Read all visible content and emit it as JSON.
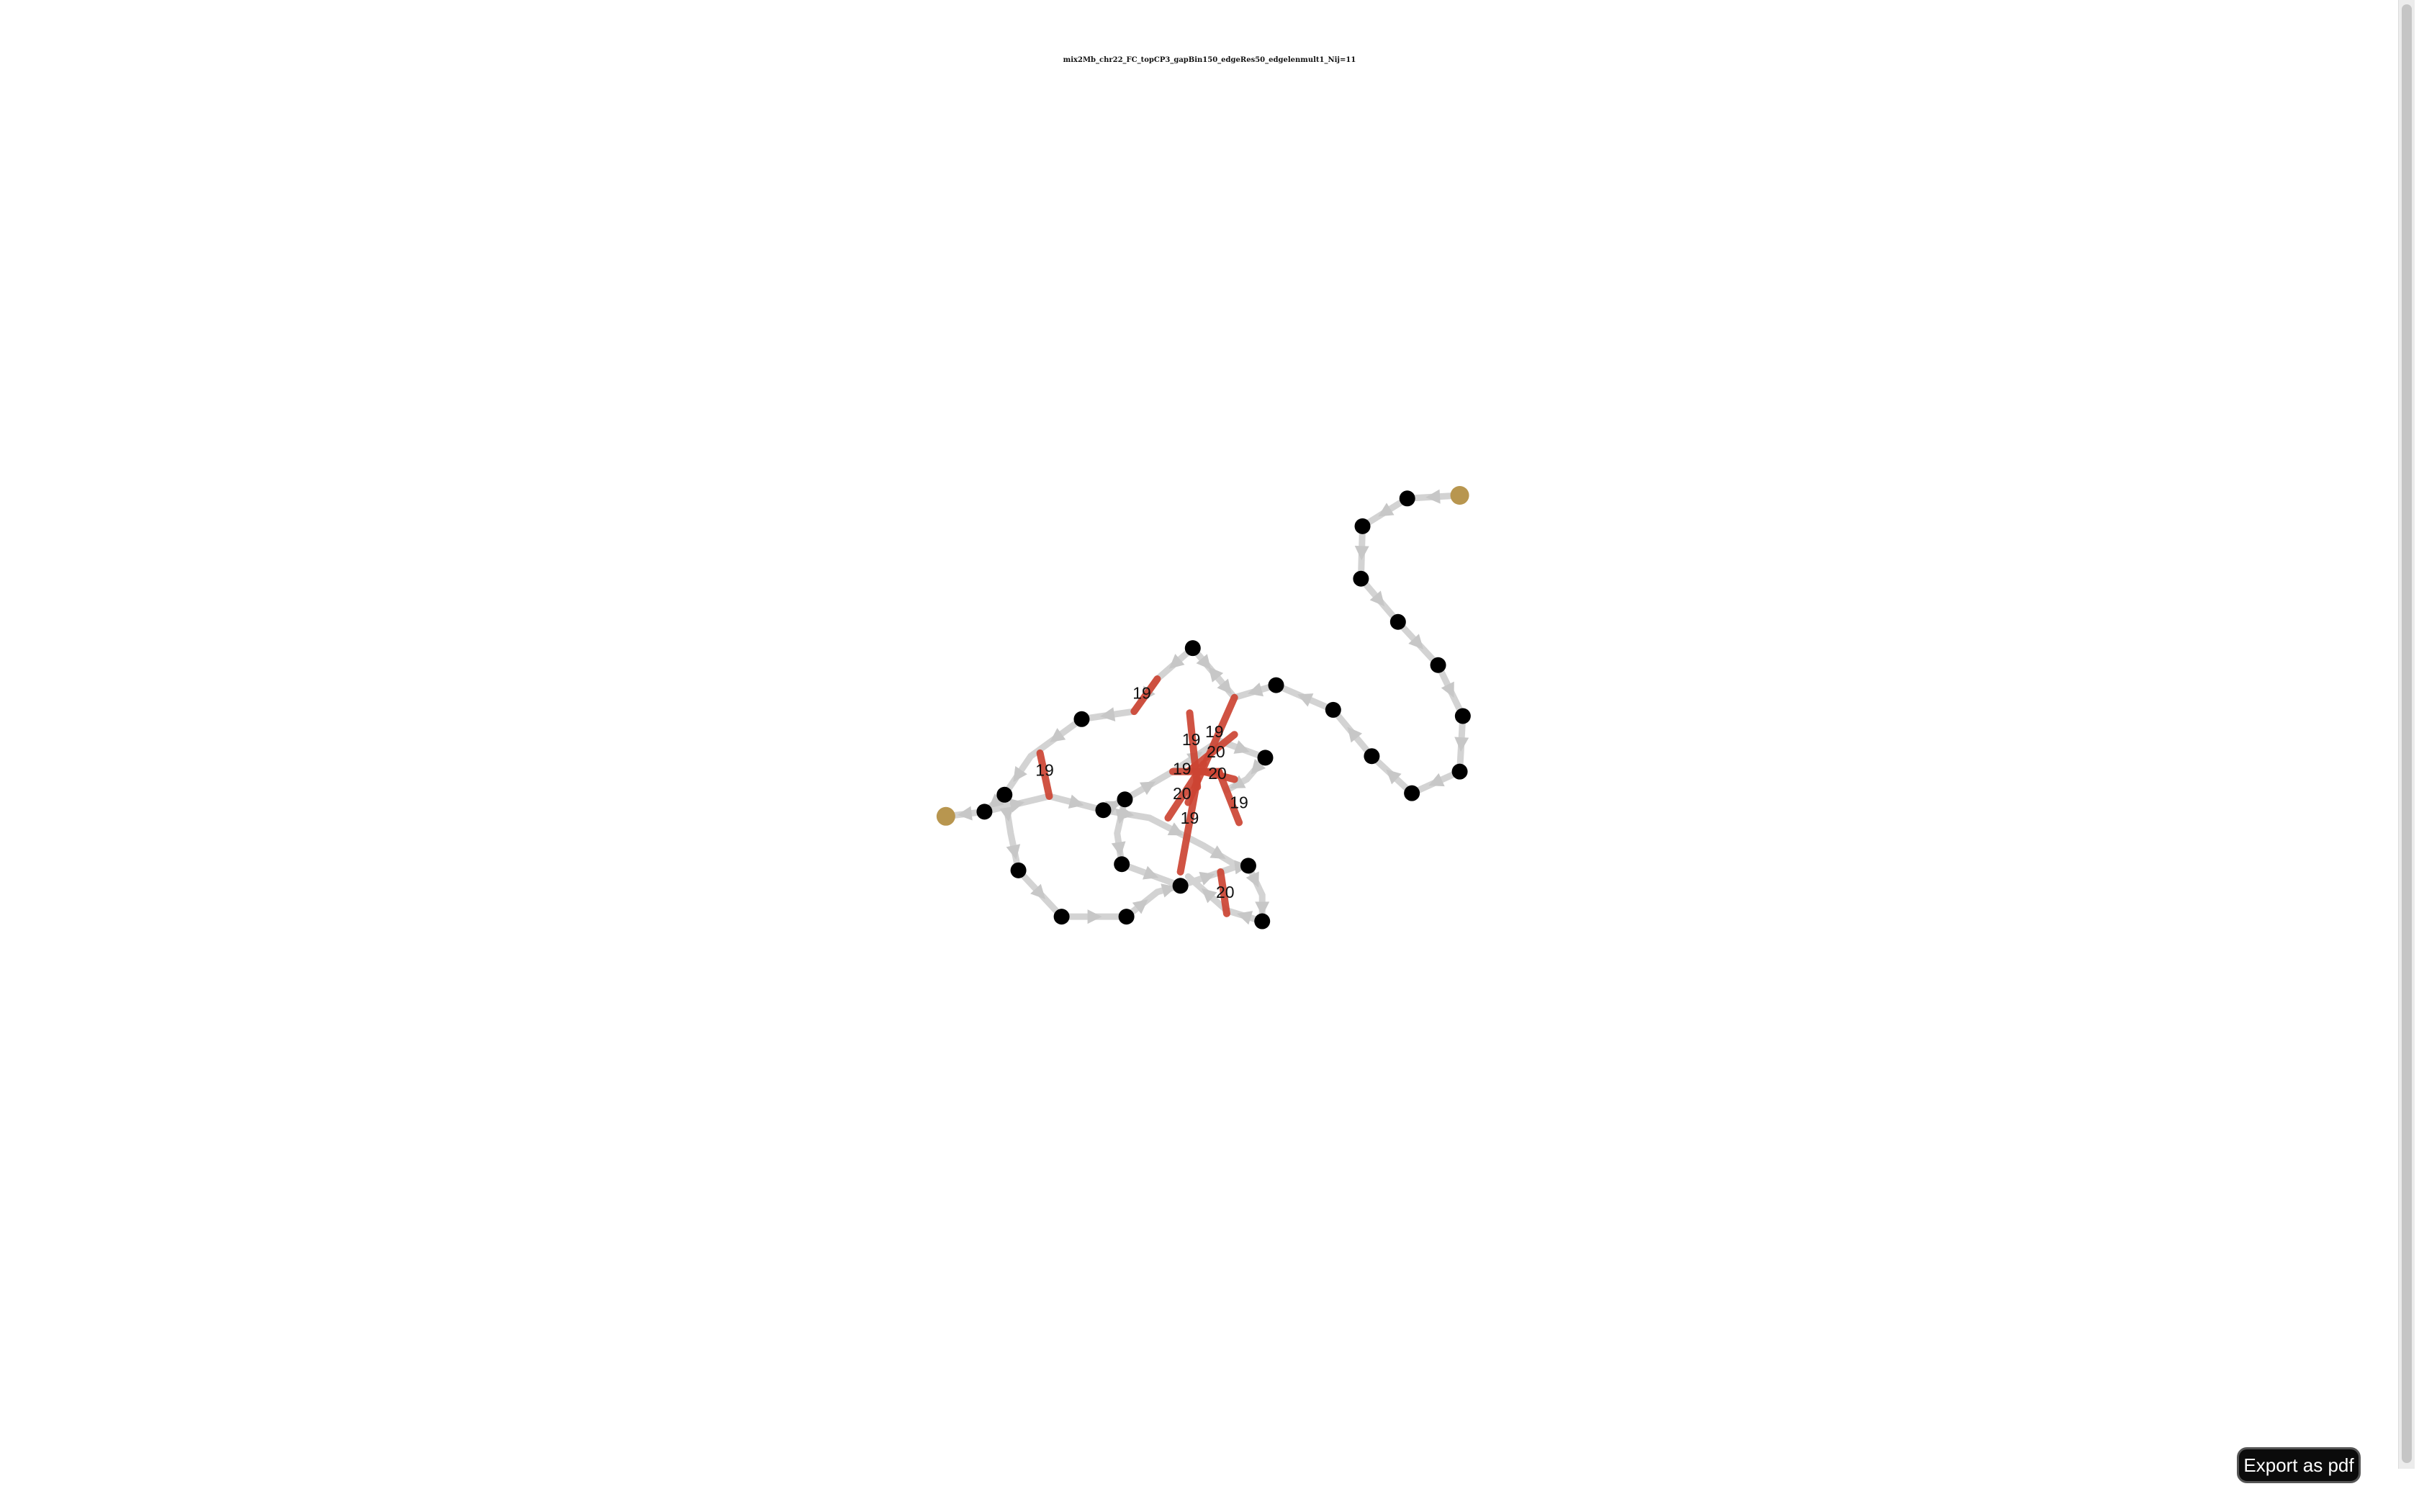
{
  "title": "mix2Mb_chr22_FC_topCP3_gapBin150_edgeRes50_edgelenmult1_Nij=11",
  "export_button": "Export as pdf",
  "colors": {
    "edge": "#d3d3d3",
    "link": "#cc4433",
    "node": "#000000",
    "terminal_node": "#b8964f"
  },
  "edge_labels": [
    "19",
    "19",
    "19",
    "19",
    "20",
    "19",
    "20",
    "20",
    "19",
    "19",
    "20"
  ]
}
